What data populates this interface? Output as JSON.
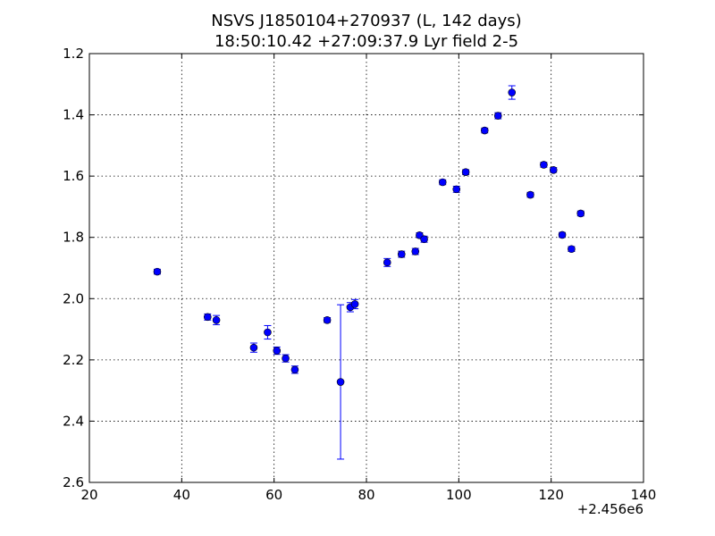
{
  "chart_data": {
    "type": "scatter",
    "title_line1": "NSVS J1850104+270937 (L, 142 days)",
    "title_line2": "18:50:10.42 +27:09:37.9 Lyr field 2-5",
    "xlabel": "",
    "ylabel": "",
    "xlim": [
      20,
      140
    ],
    "ylim": [
      2.6,
      1.2
    ],
    "y_inverted": true,
    "grid": true,
    "x_offset_label": "+2.456e6",
    "x_ticks": [
      20,
      40,
      60,
      80,
      100,
      120,
      140
    ],
    "x_tick_labels": [
      "20",
      "40",
      "60",
      "80",
      "100",
      "120",
      "140"
    ],
    "y_ticks": [
      1.2,
      1.4,
      1.6,
      1.8,
      2.0,
      2.2,
      2.4,
      2.6
    ],
    "y_tick_labels": [
      "1.2",
      "1.4",
      "1.6",
      "1.8",
      "2.0",
      "2.2",
      "2.4",
      "2.6"
    ],
    "marker_color": "#0000ff",
    "errorbar_color": "#0000ff",
    "points": [
      {
        "x": 34.7,
        "y": 1.912,
        "err": 0.008
      },
      {
        "x": 45.6,
        "y": 2.06,
        "err": 0.01
      },
      {
        "x": 47.5,
        "y": 2.07,
        "err": 0.015
      },
      {
        "x": 55.6,
        "y": 2.16,
        "err": 0.015
      },
      {
        "x": 58.6,
        "y": 2.11,
        "err": 0.022
      },
      {
        "x": 60.6,
        "y": 2.17,
        "err": 0.012
      },
      {
        "x": 62.5,
        "y": 2.195,
        "err": 0.012
      },
      {
        "x": 64.5,
        "y": 2.232,
        "err": 0.012
      },
      {
        "x": 71.5,
        "y": 2.07,
        "err": 0.008
      },
      {
        "x": 74.4,
        "y": 2.272,
        "err": 0.252
      },
      {
        "x": 76.5,
        "y": 2.028,
        "err": 0.015
      },
      {
        "x": 77.5,
        "y": 2.018,
        "err": 0.015
      },
      {
        "x": 84.5,
        "y": 1.882,
        "err": 0.013
      },
      {
        "x": 87.6,
        "y": 1.855,
        "err": 0.01
      },
      {
        "x": 90.6,
        "y": 1.846,
        "err": 0.01
      },
      {
        "x": 91.5,
        "y": 1.793,
        "err": 0.008
      },
      {
        "x": 92.5,
        "y": 1.806,
        "err": 0.01
      },
      {
        "x": 96.5,
        "y": 1.62,
        "err": 0.008
      },
      {
        "x": 99.5,
        "y": 1.643,
        "err": 0.01
      },
      {
        "x": 101.5,
        "y": 1.587,
        "err": 0.008
      },
      {
        "x": 105.6,
        "y": 1.451,
        "err": 0.008
      },
      {
        "x": 108.5,
        "y": 1.403,
        "err": 0.01
      },
      {
        "x": 111.5,
        "y": 1.327,
        "err": 0.022
      },
      {
        "x": 115.5,
        "y": 1.661,
        "err": 0.008
      },
      {
        "x": 118.4,
        "y": 1.563,
        "err": 0.008
      },
      {
        "x": 120.5,
        "y": 1.58,
        "err": 0.008
      },
      {
        "x": 122.4,
        "y": 1.792,
        "err": 0.008
      },
      {
        "x": 124.4,
        "y": 1.838,
        "err": 0.008
      },
      {
        "x": 126.4,
        "y": 1.722,
        "err": 0.008
      }
    ]
  }
}
